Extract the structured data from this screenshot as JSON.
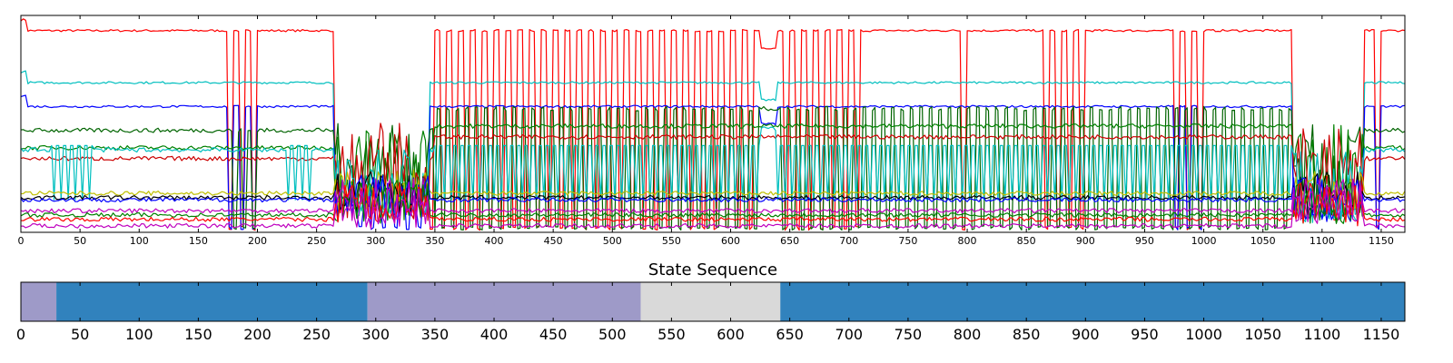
{
  "chart_data": [
    {
      "type": "line",
      "title": "",
      "xlabel": "",
      "ylabel": "",
      "xlim": [
        0,
        1170
      ],
      "ylim": [
        0,
        1
      ],
      "grid": false,
      "x_ticks": [
        "0",
        "50",
        "100",
        "150",
        "200",
        "250",
        "300",
        "350",
        "400",
        "450",
        "500",
        "550",
        "600",
        "650",
        "700",
        "750",
        "800",
        "850",
        "900",
        "950",
        "1000",
        "1050",
        "1100",
        "1150"
      ],
      "series": [
        {
          "color": "#ff0000",
          "base": 0.93,
          "shape": "high",
          "dip_every": 5,
          "dip_spans": [
            [
              175,
              200
            ],
            [
              345,
              625
            ],
            [
              640,
              715
            ],
            [
              795,
              805
            ],
            [
              860,
              900
            ],
            [
              970,
              1000
            ],
            [
              1140,
              1150
            ]
          ]
        },
        {
          "color": "#00bfbf",
          "base": 0.69,
          "shape": "high",
          "dip_every": 0,
          "dip_spans": []
        },
        {
          "color": "#0000ff",
          "base": 0.58,
          "shape": "high",
          "dip_every": 5,
          "dip_spans": [
            [
              175,
              200
            ],
            [
              280,
              340
            ],
            [
              970,
              1000
            ],
            [
              1140,
              1150
            ]
          ]
        },
        {
          "color": "#006400",
          "base": 0.47,
          "shape": "mid",
          "dip_every": 4,
          "dip_spans": [
            [
              175,
              200
            ],
            [
              350,
              625
            ],
            [
              640,
              1075
            ]
          ]
        },
        {
          "color": "#008000",
          "base": 0.39,
          "shape": "mid",
          "dip_every": 0,
          "dip_spans": []
        },
        {
          "color": "#cc0000",
          "base": 0.34,
          "shape": "mid",
          "dip_every": 0,
          "dip_spans": []
        },
        {
          "color": "#00bfbf",
          "base": 0.38,
          "shape": "spiky",
          "dip_every": 3,
          "dip_spans": [
            [
              25,
              60
            ],
            [
              225,
              245
            ],
            [
              350,
              625
            ],
            [
              640,
              1075
            ]
          ]
        },
        {
          "color": "#bfbf00",
          "base": 0.18,
          "shape": "low",
          "dip_every": 0,
          "dip_spans": []
        },
        {
          "color": "#000000",
          "base": 0.16,
          "shape": "low",
          "dip_every": 0,
          "dip_spans": []
        },
        {
          "color": "#0000ff",
          "base": 0.15,
          "shape": "low",
          "dip_every": 0,
          "dip_spans": []
        },
        {
          "color": "#bf00bf",
          "base": 0.1,
          "shape": "low",
          "dip_every": 0,
          "dip_spans": []
        },
        {
          "color": "#008000",
          "base": 0.08,
          "shape": "low",
          "dip_every": 0,
          "dip_spans": []
        },
        {
          "color": "#ff0000",
          "base": 0.06,
          "shape": "low",
          "dip_every": 0,
          "dip_spans": []
        },
        {
          "color": "#bf00bf",
          "base": 0.03,
          "shape": "low",
          "dip_every": 0,
          "dip_spans": []
        }
      ]
    },
    {
      "type": "heatmap",
      "title": "State Sequence",
      "xlabel": "",
      "ylabel": "",
      "xlim": [
        0,
        1170
      ],
      "grid": false,
      "x_ticks": [
        "0",
        "50",
        "100",
        "150",
        "200",
        "250",
        "300",
        "350",
        "400",
        "450",
        "500",
        "550",
        "600",
        "650",
        "700",
        "750",
        "800",
        "850",
        "900",
        "950",
        "1000",
        "1050",
        "1100",
        "1150"
      ],
      "segments": [
        {
          "start": 0,
          "end": 30,
          "color": "#9e9ac8"
        },
        {
          "start": 30,
          "end": 293,
          "color": "#3182bd"
        },
        {
          "start": 293,
          "end": 524,
          "color": "#9e9ac8"
        },
        {
          "start": 524,
          "end": 642,
          "color": "#d9d9d9"
        },
        {
          "start": 642,
          "end": 1170,
          "color": "#3182bd"
        }
      ]
    }
  ]
}
